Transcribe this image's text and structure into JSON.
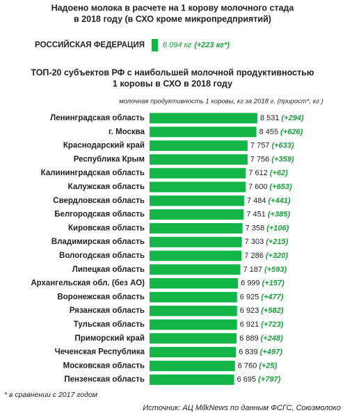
{
  "chart_data": {
    "type": "bar",
    "orientation": "horizontal",
    "title_lines": [
      "Надоено молока в расчете на 1 корову молочного стада",
      "в 2018 году (в СХО кроме микропредприятий)"
    ],
    "reference": {
      "label": "РОССИЙСКАЯ ФЕДЕРАЦИЯ",
      "value": 6094,
      "value_label": "6 094 кг",
      "growth": 223,
      "growth_label": "(+223 кг*)"
    },
    "subtitle_lines": [
      "ТОП-20 субъектов РФ с наибольшей молочной продуктивностью",
      "1 коровы в СХО в 2018 году"
    ],
    "axis_note": "молочная продуктивность 1 коровы, кг за 2018 г. (прирост*, кг )",
    "categories": [
      "Ленинградская область",
      "г. Москва",
      "Краснодарский край",
      "Республика Крым",
      "Калининградская область",
      "Калужская область",
      "Свердловская область",
      "Белгородская область",
      "Кировская область",
      "Владимирская область",
      "Вологодская область",
      "Липецкая область",
      "Архангельская обл. (без АО)",
      "Воронежская область",
      "Рязанская область",
      "Тульская область",
      "Приморский край",
      "Чеченская Республика",
      "Московская область",
      "Пензенская область"
    ],
    "values": [
      8531,
      8455,
      7757,
      7756,
      7612,
      7600,
      7484,
      7451,
      7358,
      7303,
      7286,
      7187,
      6999,
      6925,
      6923,
      6921,
      6889,
      6839,
      6760,
      6695
    ],
    "value_labels": [
      "8 531",
      "8 455",
      "7 757",
      "7 756",
      "7 612",
      "7 600",
      "7 484",
      "7 451",
      "7 358",
      "7 303",
      "7 286",
      "7 187",
      "6 999",
      "6 925",
      "6 923",
      "6 921",
      "6 889",
      "6 839",
      "6 760",
      "6 695"
    ],
    "growth": [
      294,
      626,
      633,
      359,
      62,
      653,
      441,
      385,
      106,
      215,
      320,
      593,
      157,
      477,
      582,
      723,
      248,
      497,
      25,
      797
    ],
    "growth_labels": [
      "(+294)",
      "(+626)",
      "(+633)",
      "(+359)",
      "(+62)",
      "(+653)",
      "(+441)",
      "(+385)",
      "(+106)",
      "(+215)",
      "(+320)",
      "(+593)",
      "(+157)",
      "(+477)",
      "(+582)",
      "(+723)",
      "(+248)",
      "(+497)",
      "(+25)",
      "(+797)"
    ],
    "color": "#14b548",
    "growth_color": "#1a9e3c",
    "xlim": [
      0,
      9000
    ],
    "footnote": "* в сравнении с 2017 годом",
    "source": "Источник: АЦ MilkNews по данным ФСГС, Союзмолоко"
  }
}
